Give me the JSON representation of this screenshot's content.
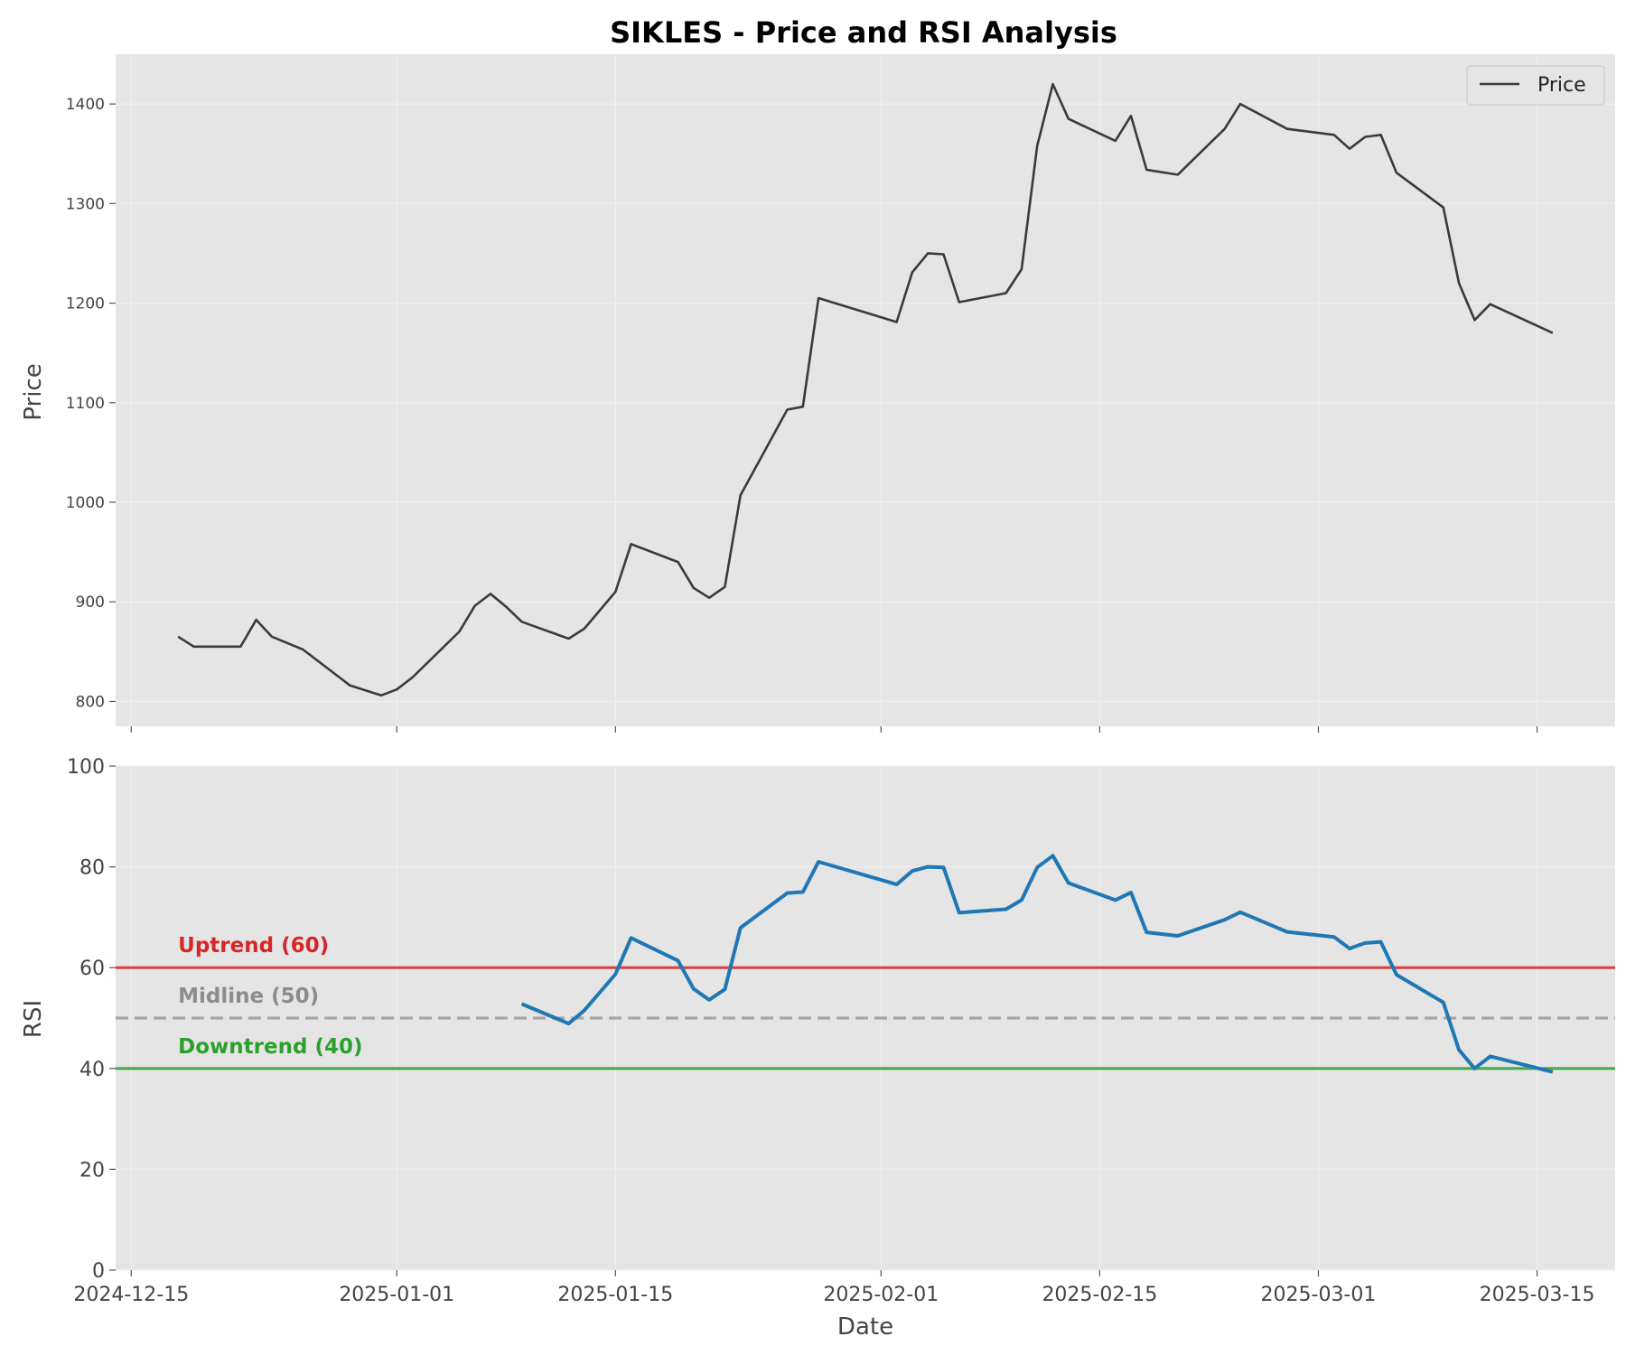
{
  "chart_data": {
    "title": "SIKLES - Price and RSI Analysis",
    "xlabel": "Date",
    "x_ticks": [
      "2024-12-15",
      "2025-01-01",
      "2025-01-15",
      "2025-02-01",
      "2025-02-15",
      "2025-03-01",
      "2025-03-15"
    ],
    "x_range": [
      "2024-12-14",
      "2025-03-20"
    ],
    "colors": {
      "price": "#3a3a3a",
      "rsi": "#1f77b4",
      "uptrend": "#d62728",
      "midline": "#8c8c8c",
      "downtrend": "#2ca02c",
      "panel_bg": "#e5e5e5",
      "grid": "#f0f0f0"
    },
    "panels": [
      {
        "type": "line",
        "ylabel": "Price",
        "ylim": [
          775,
          1450
        ],
        "yticks": [
          800,
          900,
          1000,
          1100,
          1200,
          1300,
          1400
        ],
        "grid": true,
        "legend": {
          "position": "top-right",
          "entries": [
            "Price"
          ]
        },
        "series": [
          {
            "name": "Price",
            "points": [
              [
                "2024-12-18",
                865
              ],
              [
                "2024-12-19",
                855
              ],
              [
                "2024-12-22",
                855
              ],
              [
                "2024-12-23",
                882
              ],
              [
                "2024-12-24",
                865
              ],
              [
                "2024-12-26",
                852
              ],
              [
                "2024-12-29",
                816
              ],
              [
                "2024-12-31",
                806
              ],
              [
                "2025-01-01",
                812
              ],
              [
                "2025-01-02",
                824
              ],
              [
                "2025-01-05",
                870
              ],
              [
                "2025-01-06",
                896
              ],
              [
                "2025-01-07",
                908
              ],
              [
                "2025-01-08",
                895
              ],
              [
                "2025-01-09",
                880
              ],
              [
                "2025-01-12",
                863
              ],
              [
                "2025-01-13",
                873
              ],
              [
                "2025-01-15",
                910
              ],
              [
                "2025-01-16",
                958
              ],
              [
                "2025-01-19",
                940
              ],
              [
                "2025-01-20",
                914
              ],
              [
                "2025-01-21",
                904
              ],
              [
                "2025-01-22",
                915
              ],
              [
                "2025-01-23",
                1007
              ],
              [
                "2025-01-26",
                1093
              ],
              [
                "2025-01-27",
                1096
              ],
              [
                "2025-01-28",
                1205
              ],
              [
                "2025-02-02",
                1181
              ],
              [
                "2025-02-03",
                1231
              ],
              [
                "2025-02-04",
                1250
              ],
              [
                "2025-02-05",
                1249
              ],
              [
                "2025-02-06",
                1201
              ],
              [
                "2025-02-09",
                1210
              ],
              [
                "2025-02-10",
                1234
              ],
              [
                "2025-02-11",
                1358
              ],
              [
                "2025-02-12",
                1420
              ],
              [
                "2025-02-13",
                1385
              ],
              [
                "2025-02-16",
                1363
              ],
              [
                "2025-02-17",
                1388
              ],
              [
                "2025-02-18",
                1334
              ],
              [
                "2025-02-20",
                1329
              ],
              [
                "2025-02-23",
                1375
              ],
              [
                "2025-02-24",
                1400
              ],
              [
                "2025-02-27",
                1375
              ],
              [
                "2025-03-02",
                1369
              ],
              [
                "2025-03-03",
                1355
              ],
              [
                "2025-03-04",
                1367
              ],
              [
                "2025-03-05",
                1369
              ],
              [
                "2025-03-06",
                1331
              ],
              [
                "2025-03-09",
                1296
              ],
              [
                "2025-03-10",
                1220
              ],
              [
                "2025-03-11",
                1183
              ],
              [
                "2025-03-12",
                1199
              ],
              [
                "2025-03-16",
                1170
              ]
            ]
          }
        ]
      },
      {
        "type": "line",
        "ylabel": "RSI",
        "ylim": [
          0,
          100
        ],
        "yticks": [
          0,
          20,
          40,
          60,
          80,
          100
        ],
        "grid": true,
        "series": [
          {
            "points": [
              [
                "2025-01-09",
                52.8
              ],
              [
                "2025-01-12",
                48.9
              ],
              [
                "2025-01-13",
                51.5
              ],
              [
                "2025-01-15",
                58.7
              ],
              [
                "2025-01-16",
                65.9
              ],
              [
                "2025-01-19",
                61.4
              ],
              [
                "2025-01-20",
                55.8
              ],
              [
                "2025-01-21",
                53.6
              ],
              [
                "2025-01-22",
                55.7
              ],
              [
                "2025-01-23",
                67.9
              ],
              [
                "2025-01-26",
                74.8
              ],
              [
                "2025-01-27",
                75.0
              ],
              [
                "2025-01-28",
                81.0
              ],
              [
                "2025-02-02",
                76.5
              ],
              [
                "2025-02-03",
                79.2
              ],
              [
                "2025-02-04",
                80.0
              ],
              [
                "2025-02-05",
                79.9
              ],
              [
                "2025-02-06",
                70.9
              ],
              [
                "2025-02-09",
                71.6
              ],
              [
                "2025-02-10",
                73.4
              ],
              [
                "2025-02-11",
                79.9
              ],
              [
                "2025-02-12",
                82.2
              ],
              [
                "2025-02-13",
                76.8
              ],
              [
                "2025-02-16",
                73.4
              ],
              [
                "2025-02-17",
                74.9
              ],
              [
                "2025-02-18",
                67.0
              ],
              [
                "2025-02-20",
                66.3
              ],
              [
                "2025-02-23",
                69.5
              ],
              [
                "2025-02-24",
                71.0
              ],
              [
                "2025-02-27",
                67.1
              ],
              [
                "2025-03-02",
                66.1
              ],
              [
                "2025-03-03",
                63.8
              ],
              [
                "2025-03-04",
                64.9
              ],
              [
                "2025-03-05",
                65.1
              ],
              [
                "2025-03-06",
                58.6
              ],
              [
                "2025-03-09",
                53.1
              ],
              [
                "2025-03-10",
                43.7
              ],
              [
                "2025-03-11",
                40.0
              ],
              [
                "2025-03-12",
                42.4
              ],
              [
                "2025-03-16",
                39.3
              ]
            ]
          }
        ],
        "reference_lines": [
          {
            "label": "Uptrend (60)",
            "value": 60,
            "style": "solid",
            "color": "#d62728"
          },
          {
            "label": "Midline (50)",
            "value": 50,
            "style": "dashed",
            "color": "#8c8c8c"
          },
          {
            "label": "Downtrend (40)",
            "value": 40,
            "style": "solid",
            "color": "#2ca02c"
          }
        ]
      }
    ]
  }
}
